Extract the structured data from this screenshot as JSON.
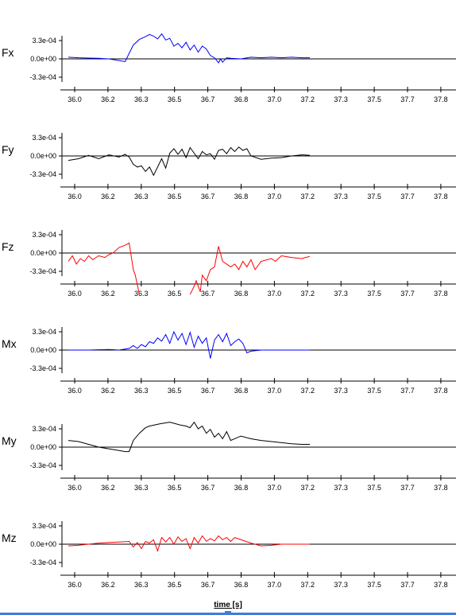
{
  "chart_data": {
    "type": "line",
    "xlabel": "time [s]",
    "x_ticks": [
      "36.0",
      "36.2",
      "36.3",
      "36.5",
      "36.7",
      "36.8",
      "37.0",
      "37.2",
      "37.3",
      "37.5",
      "37.7",
      "37.8"
    ],
    "xlim": [
      36.0,
      37.91
    ],
    "panels": [
      {
        "label": "Fx",
        "color": "#0000ff",
        "y_ticks": [
          "3.3e-04",
          "0.0e+00",
          "-3.3e-04"
        ],
        "ylim": [
          -0.00052,
          0.00045
        ],
        "x": [
          36.0,
          36.05,
          36.1,
          36.15,
          36.2,
          36.25,
          36.28,
          36.3,
          36.32,
          36.35,
          36.38,
          36.4,
          36.42,
          36.44,
          36.46,
          36.48,
          36.5,
          36.52,
          36.54,
          36.56,
          36.58,
          36.6,
          36.62,
          36.64,
          36.66,
          36.68,
          36.7,
          36.72,
          36.74,
          36.75,
          36.76,
          36.78,
          36.8,
          36.85,
          36.9,
          36.95,
          37.0,
          37.05,
          37.1,
          37.15,
          37.19
        ],
        "y": [
          3e-05,
          2e-05,
          1.5e-05,
          1e-05,
          0.0,
          -3e-05,
          -5e-05,
          0.0001,
          0.00025,
          0.00035,
          0.0004,
          0.00044,
          0.00041,
          0.00036,
          0.00045,
          0.00034,
          0.00037,
          0.00023,
          0.00028,
          0.0002,
          0.0003,
          0.00016,
          0.00025,
          0.00012,
          0.00023,
          0.00018,
          6e-05,
          2e-05,
          -7e-05,
          0.0,
          -6e-05,
          2e-05,
          1e-05,
          0.0,
          3e-05,
          2e-05,
          3e-05,
          2e-05,
          3e-05,
          2e-05,
          2e-05
        ]
      },
      {
        "label": "Fy",
        "color": "#000000",
        "y_ticks": [
          "3.3e-04",
          "0.0e+00",
          "-3.3e-04"
        ],
        "ylim": [
          -0.00052,
          0.00045
        ],
        "x": [
          36.0,
          36.05,
          36.1,
          36.15,
          36.2,
          36.25,
          36.28,
          36.3,
          36.32,
          36.34,
          36.36,
          36.38,
          36.4,
          36.42,
          36.44,
          36.46,
          36.48,
          36.5,
          36.52,
          36.54,
          36.56,
          36.58,
          36.6,
          36.62,
          36.64,
          36.66,
          36.68,
          36.7,
          36.72,
          36.74,
          36.76,
          36.78,
          36.8,
          36.82,
          36.84,
          36.86,
          36.88,
          36.9,
          36.95,
          37.0,
          37.05,
          37.1,
          37.15,
          37.19
        ],
        "y": [
          -8e-05,
          -5e-05,
          1e-05,
          -5e-05,
          2e-05,
          -2e-05,
          3e-05,
          -2e-05,
          -0.00015,
          -0.0002,
          -0.00018,
          -0.00028,
          -0.0002,
          -0.00035,
          -0.0002,
          -5e-05,
          -0.00022,
          5e-05,
          0.00013,
          3e-05,
          0.00012,
          -3e-05,
          0.00015,
          5e-05,
          -5e-05,
          8e-05,
          2e-05,
          4e-05,
          -6e-05,
          0.0001,
          0.00012,
          4e-05,
          0.00015,
          8e-05,
          0.00016,
          0.0001,
          0.00013,
          0.0,
          -6e-05,
          -4e-05,
          -3e-05,
          0.0,
          2e-05,
          1e-05
        ]
      },
      {
        "label": "Fz",
        "color": "#ff0000",
        "y_ticks": [
          "3.3e-04",
          "0.0e+00",
          "-3.3e-04"
        ],
        "ylim": [
          -0.00052,
          0.00045
        ],
        "x": [
          36.0,
          36.02,
          36.04,
          36.06,
          36.08,
          36.1,
          36.12,
          36.15,
          36.18,
          36.2,
          36.22,
          36.25,
          36.28,
          36.3,
          36.32,
          36.33,
          36.35,
          null,
          36.6,
          36.62,
          36.63,
          36.65,
          36.66,
          36.68,
          36.7,
          36.72,
          36.74,
          36.76,
          36.78,
          36.8,
          36.82,
          36.84,
          36.86,
          36.88,
          36.9,
          36.92,
          36.95,
          37.0,
          37.02,
          37.05,
          37.1,
          37.15,
          37.19
        ],
        "y": [
          -0.00015,
          -5e-05,
          -0.0002,
          -0.0001,
          -0.00015,
          -5e-05,
          -0.00012,
          -5e-05,
          -8e-05,
          -3e-05,
          0.0,
          0.0001,
          0.00014,
          0.00018,
          -0.0003,
          -0.0004,
          -0.0008,
          null,
          -0.0008,
          -0.0006,
          -0.0005,
          -0.0007,
          -0.0004,
          -0.0005,
          -0.0003,
          -0.00025,
          0.00012,
          -0.00015,
          -0.0002,
          -0.00025,
          -0.0002,
          -0.0003,
          -0.00015,
          -0.00025,
          -0.00012,
          -0.0003,
          -0.00015,
          -0.0001,
          -0.00015,
          -5e-05,
          -8e-05,
          -0.0001,
          -6e-05
        ]
      },
      {
        "label": "Mx",
        "color": "#0000ff",
        "y_ticks": [
          "3.3e-04",
          "0.0e+00",
          "-3.3e-04"
        ],
        "ylim": [
          -0.00052,
          0.00045
        ],
        "x": [
          36.0,
          36.1,
          36.2,
          36.25,
          36.3,
          36.32,
          36.34,
          36.36,
          36.38,
          36.4,
          36.42,
          36.44,
          36.46,
          36.48,
          36.5,
          36.52,
          36.54,
          36.56,
          36.58,
          36.6,
          36.62,
          36.64,
          36.66,
          36.68,
          36.7,
          36.72,
          36.74,
          36.76,
          36.78,
          36.8,
          36.82,
          36.84,
          36.86,
          36.88,
          36.9,
          36.95,
          37.0,
          37.05,
          37.1,
          37.15,
          37.19
        ],
        "y": [
          0.0,
          0.0,
          1e-05,
          0.0,
          3e-05,
          8e-05,
          3e-05,
          0.0001,
          6e-05,
          0.00015,
          0.00012,
          0.00022,
          0.00016,
          0.00028,
          0.00012,
          0.00033,
          0.00018,
          0.0003,
          0.0001,
          0.00032,
          5e-05,
          0.00025,
          0.00012,
          0.00022,
          -0.00015,
          0.00018,
          0.00028,
          0.00015,
          0.0003,
          8e-05,
          0.00015,
          0.0002,
          0.00012,
          -5e-05,
          -2e-05,
          0.0,
          0.0,
          0.0,
          0.0,
          0.0,
          0.0
        ]
      },
      {
        "label": "My",
        "color": "#000000",
        "y_ticks": [
          "3.3e-04",
          "0.0e+00",
          "-3.3e-04"
        ],
        "ylim": [
          -0.00052,
          0.00045
        ],
        "x": [
          36.0,
          36.05,
          36.1,
          36.15,
          36.2,
          36.25,
          36.28,
          36.3,
          36.32,
          36.35,
          36.38,
          36.4,
          36.45,
          36.5,
          36.52,
          36.55,
          36.58,
          36.6,
          36.62,
          36.64,
          36.66,
          36.68,
          36.7,
          36.72,
          36.74,
          36.76,
          36.78,
          36.8,
          36.85,
          36.9,
          36.95,
          37.0,
          37.05,
          37.1,
          37.15,
          37.19
        ],
        "y": [
          0.00012,
          0.0001,
          5e-05,
          0.0,
          -3e-05,
          -6e-05,
          -8e-05,
          -8e-05,
          0.00012,
          0.00025,
          0.00035,
          0.00038,
          0.00042,
          0.00045,
          0.00043,
          0.0004,
          0.00038,
          0.00035,
          0.00045,
          0.00033,
          0.00038,
          0.00025,
          0.00032,
          0.00018,
          0.00025,
          0.00015,
          0.00028,
          0.00012,
          0.0002,
          0.00015,
          0.00012,
          0.0001,
          8e-05,
          6e-05,
          5e-05,
          5e-05
        ]
      },
      {
        "label": "Mz",
        "color": "#ff0000",
        "y_ticks": [
          "3.3e-04",
          "0.0e+00",
          "-3.3e-04"
        ],
        "ylim": [
          -0.00052,
          0.00045
        ],
        "x": [
          36.0,
          36.05,
          36.1,
          36.15,
          36.2,
          36.25,
          36.3,
          36.32,
          36.34,
          36.36,
          36.38,
          36.4,
          36.42,
          36.44,
          36.46,
          36.48,
          36.5,
          36.52,
          36.54,
          36.56,
          36.58,
          36.6,
          36.62,
          36.64,
          36.66,
          36.68,
          36.7,
          36.72,
          36.74,
          36.76,
          36.78,
          36.8,
          36.82,
          36.85,
          36.9,
          36.95,
          37.0,
          37.05,
          37.1,
          37.15,
          37.19
        ],
        "y": [
          -3e-05,
          -2e-05,
          0.0,
          2e-05,
          3e-05,
          4e-05,
          5e-05,
          -5e-05,
          3e-05,
          -8e-05,
          5e-05,
          2e-05,
          8e-05,
          -0.00012,
          0.00012,
          4e-05,
          0.00012,
          0.0,
          0.00013,
          5e-05,
          0.0001,
          -8e-05,
          0.00012,
          2e-05,
          0.00015,
          5e-05,
          0.0001,
          6e-05,
          0.00015,
          8e-05,
          0.00012,
          5e-05,
          0.00012,
          8e-05,
          2e-05,
          -3e-05,
          -2e-05,
          0.0,
          0.0,
          0.0,
          0.0
        ]
      }
    ]
  }
}
